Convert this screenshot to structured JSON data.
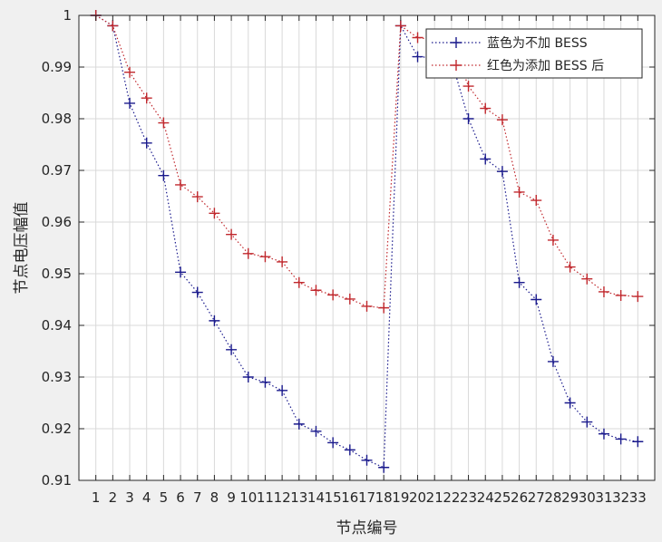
{
  "chart_data": {
    "type": "line",
    "title": "",
    "xlabel": "节点编号",
    "ylabel": "节点电压幅值",
    "categories": [
      "1",
      "2",
      "3",
      "4",
      "5",
      "6",
      "7",
      "8",
      "9",
      "10",
      "11",
      "12",
      "13",
      "14",
      "15",
      "16",
      "17",
      "18",
      "19",
      "20",
      "21",
      "22",
      "23",
      "24",
      "25",
      "26",
      "27",
      "28",
      "29",
      "30",
      "31",
      "32",
      "33"
    ],
    "xlim": [
      0,
      34
    ],
    "ylim": [
      0.91,
      1
    ],
    "yticks": [
      0.91,
      0.92,
      0.93,
      0.94,
      0.95,
      0.96,
      0.97,
      0.98,
      0.99,
      1
    ],
    "ytick_labels": [
      "0.91",
      "0.92",
      "0.93",
      "0.94",
      "0.95",
      "0.96",
      "0.97",
      "0.98",
      "0.99",
      "1"
    ],
    "grid": true,
    "legend_position": "top-right",
    "series": [
      {
        "name": "蓝色为不加 BESS",
        "color": "#1a1a8c",
        "marker": "+",
        "line_style": "dotted",
        "values": [
          1.0,
          0.998,
          0.983,
          0.9753,
          0.969,
          0.9503,
          0.9464,
          0.9409,
          0.9353,
          0.93,
          0.929,
          0.9274,
          0.9209,
          0.9195,
          0.9173,
          0.9159,
          0.9139,
          0.9125,
          0.998,
          0.992,
          0.9918,
          0.9913,
          0.98,
          0.9722,
          0.9698,
          0.9483,
          0.945,
          0.933,
          0.925,
          0.9213,
          0.919,
          0.918,
          0.9175
        ]
      },
      {
        "name": "红色为添加 BESS 后",
        "color": "#c0282d",
        "marker": "+",
        "line_style": "dotted",
        "values": [
          1.0,
          0.998,
          0.989,
          0.984,
          0.9792,
          0.9672,
          0.9649,
          0.9617,
          0.9576,
          0.9539,
          0.9533,
          0.9523,
          0.9483,
          0.9468,
          0.9459,
          0.9451,
          0.9437,
          0.9434,
          0.998,
          0.9957,
          0.9953,
          0.9948,
          0.9863,
          0.982,
          0.9798,
          0.9658,
          0.9642,
          0.9565,
          0.9513,
          0.949,
          0.9465,
          0.9458,
          0.9456
        ]
      }
    ]
  }
}
